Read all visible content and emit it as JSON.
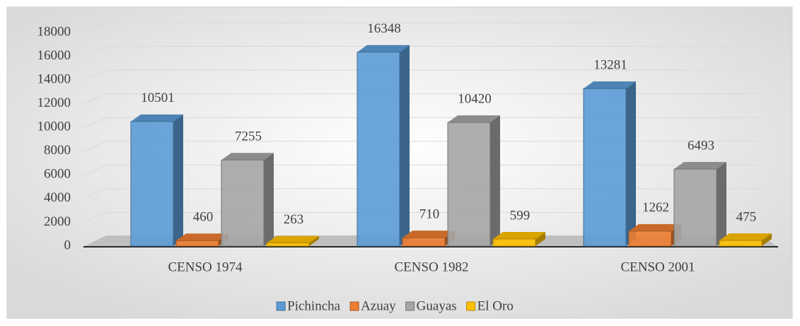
{
  "chart_data": {
    "type": "bar3d",
    "categories": [
      "CENSO 1974",
      "CENSO 1982",
      "CENSO 2001"
    ],
    "series": [
      {
        "name": "Pichincha",
        "color": "#5b9bd5",
        "values": [
          10501,
          16348,
          13281
        ]
      },
      {
        "name": "Azuay",
        "color": "#ed7d31",
        "values": [
          460,
          710,
          1262
        ]
      },
      {
        "name": "Guayas",
        "color": "#a5a5a5",
        "values": [
          7255,
          10420,
          6493
        ]
      },
      {
        "name": "El Oro",
        "color": "#ffc000",
        "values": [
          263,
          599,
          475
        ]
      }
    ],
    "ylim": [
      0,
      18000
    ],
    "yticks": [
      0,
      2000,
      4000,
      6000,
      8000,
      10000,
      12000,
      14000,
      16000,
      18000
    ],
    "grid": true,
    "legend": "bottom"
  }
}
